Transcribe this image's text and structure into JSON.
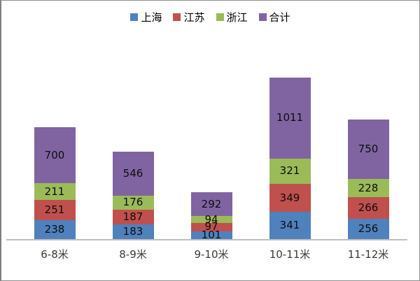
{
  "chart_data": {
    "type": "bar",
    "stacked": true,
    "title": "",
    "xlabel": "",
    "ylabel": "",
    "categories": [
      "6-8米",
      "8-9米",
      "9-10米",
      "10-11米",
      "11-12米"
    ],
    "series": [
      {
        "name": "上海",
        "color": "#4F81BD",
        "values": [
          238,
          183,
          101,
          341,
          256
        ]
      },
      {
        "name": "江苏",
        "color": "#C0504D",
        "values": [
          251,
          187,
          97,
          349,
          266
        ]
      },
      {
        "name": "浙江",
        "color": "#9BBB59",
        "values": [
          211,
          176,
          94,
          321,
          228
        ]
      },
      {
        "name": "合计",
        "color": "#8064A2",
        "values": [
          700,
          546,
          292,
          1011,
          750
        ]
      }
    ],
    "stack_order_bottom_to_top": [
      "上海",
      "江苏",
      "浙江",
      "合计"
    ],
    "data_labels": true,
    "legend": {
      "position": "top",
      "items": [
        "上海",
        "江苏",
        "浙江",
        "合计"
      ]
    },
    "axes": {
      "y_axis_visible": false,
      "gridlines": false,
      "x_baseline_color": "#BFBFBF"
    },
    "colors": {
      "background": "#FFFFFF",
      "frame_border": "#8F8F8F",
      "label_text": "#0D0D0D"
    }
  }
}
